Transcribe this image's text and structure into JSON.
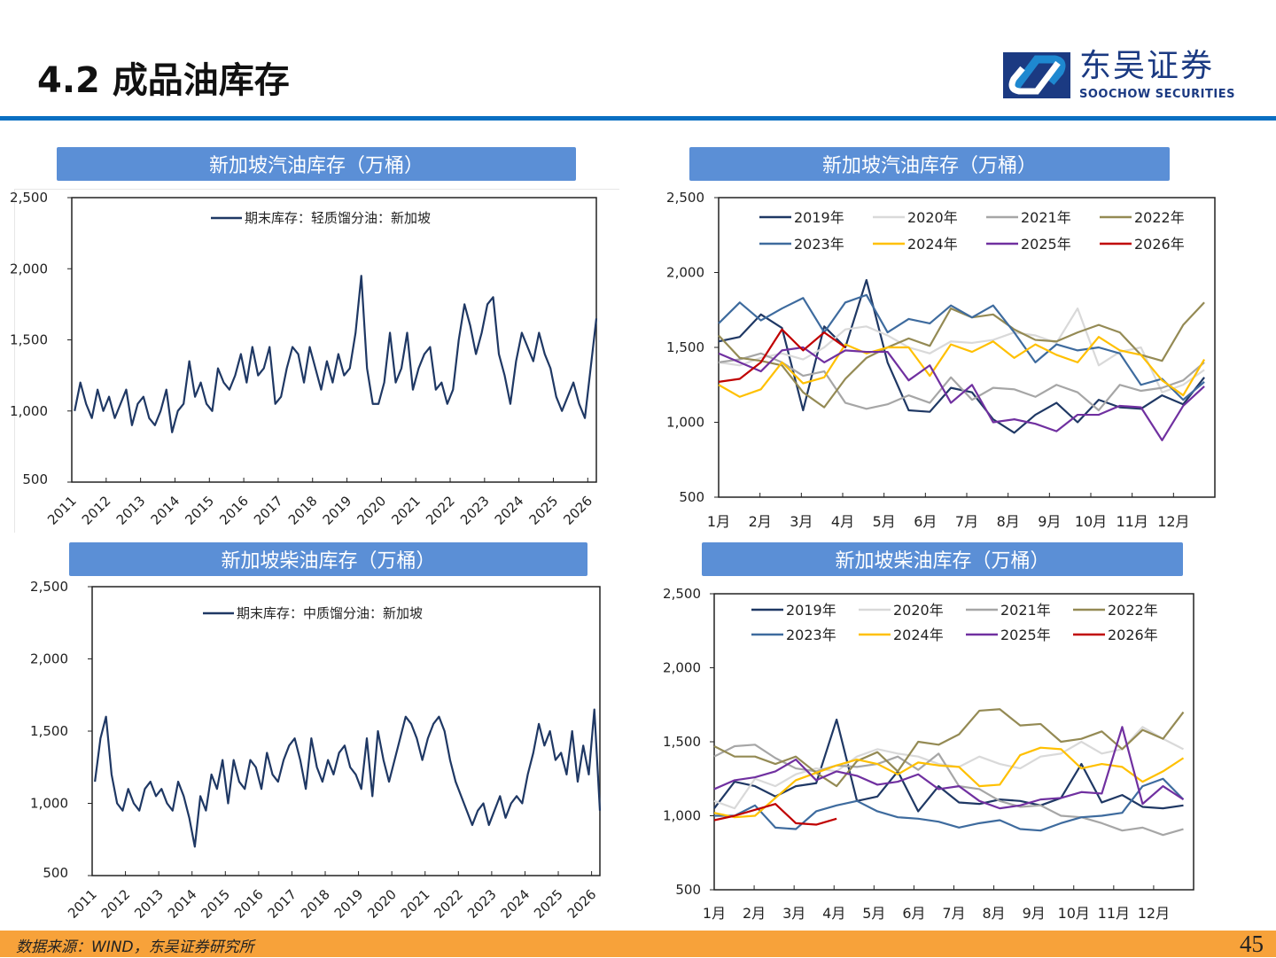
{
  "header": {
    "title": "4.2 成品油库存"
  },
  "logo": {
    "cn": "东吴证券",
    "en": "SOOCHOW SECURITIES",
    "color": "#1b3a82",
    "accent": "#1e88d0"
  },
  "footer": {
    "source": "数据来源：WIND，东吴证券研究所",
    "page": "45"
  },
  "chart_data": [
    {
      "type": "line",
      "title": "新加坡汽油库存（万桶）",
      "legend": "期末库存：轻质馏分油：新加坡",
      "color": "#1f3864",
      "ylim": [
        500,
        2500
      ],
      "y_ticks": [
        "500",
        "1,000",
        "1,500",
        "2,000",
        "2,500"
      ],
      "x_ticks": [
        "2011",
        "2012",
        "2013",
        "2014",
        "2015",
        "2016",
        "2017",
        "2018",
        "2019",
        "2020",
        "2021",
        "2022",
        "2023",
        "2024",
        "2025",
        "2026"
      ],
      "values_by_year": {
        "2011": [
          1000,
          1200,
          1050,
          950,
          1150,
          1000
        ],
        "2012": [
          1100,
          950,
          1050,
          1150,
          900,
          1050
        ],
        "2013": [
          1100,
          950,
          900,
          1000,
          1150,
          850
        ],
        "2014": [
          1000,
          1050,
          1350,
          1100,
          1200,
          1050
        ],
        "2015": [
          1000,
          1300,
          1200,
          1150,
          1250,
          1400
        ],
        "2016": [
          1200,
          1450,
          1250,
          1300,
          1450,
          1050
        ],
        "2017": [
          1100,
          1300,
          1450,
          1400,
          1200,
          1450
        ],
        "2018": [
          1300,
          1150,
          1350,
          1200,
          1400,
          1250
        ],
        "2019": [
          1300,
          1550,
          1950,
          1300,
          1050,
          1050
        ],
        "2020": [
          1200,
          1550,
          1200,
          1300,
          1550,
          1150
        ],
        "2021": [
          1300,
          1400,
          1450,
          1150,
          1200,
          1050
        ],
        "2022": [
          1150,
          1500,
          1750,
          1600,
          1400,
          1550
        ],
        "2023": [
          1750,
          1800,
          1400,
          1250,
          1050,
          1350
        ],
        "2024": [
          1550,
          1450,
          1350,
          1550,
          1400,
          1300
        ],
        "2025": [
          1100,
          1000,
          1100,
          1200,
          1050,
          950
        ],
        "2026": [
          1300,
          1650
        ]
      }
    },
    {
      "type": "line",
      "title": "新加坡汽油库存（万桶）",
      "ylim": [
        500,
        2500
      ],
      "y_ticks": [
        "500",
        "1,000",
        "1,500",
        "2,000",
        "2,500"
      ],
      "x_ticks": [
        "1月",
        "2月",
        "3月",
        "4月",
        "5月",
        "6月",
        "7月",
        "8月",
        "9月",
        "10月",
        "11月",
        "12月"
      ],
      "series": [
        {
          "name": "2019年",
          "color": "#1f3864",
          "values": [
            1540,
            1570,
            1720,
            1630,
            1080,
            1640,
            1500,
            1950,
            1400,
            1080,
            1070,
            1230,
            1200,
            1020,
            930,
            1050,
            1130,
            1000,
            1150,
            1100,
            1090,
            1180,
            1120,
            1300
          ]
        },
        {
          "name": "2020年",
          "color": "#d9d9d9",
          "values": [
            1400,
            1380,
            1430,
            1460,
            1420,
            1500,
            1620,
            1640,
            1580,
            1500,
            1460,
            1540,
            1530,
            1550,
            1600,
            1580,
            1530,
            1760,
            1380,
            1470,
            1500,
            1200,
            1250,
            1350
          ]
        },
        {
          "name": "2021年",
          "color": "#a6a6a6",
          "values": [
            1400,
            1420,
            1460,
            1400,
            1310,
            1340,
            1130,
            1090,
            1120,
            1180,
            1130,
            1300,
            1150,
            1230,
            1220,
            1170,
            1250,
            1200,
            1080,
            1250,
            1210,
            1230,
            1280,
            1400
          ]
        },
        {
          "name": "2022年",
          "color": "#948a54",
          "values": [
            1580,
            1430,
            1410,
            1380,
            1200,
            1100,
            1290,
            1430,
            1500,
            1560,
            1510,
            1760,
            1700,
            1720,
            1620,
            1550,
            1540,
            1600,
            1650,
            1600,
            1450,
            1410,
            1650,
            1800
          ]
        },
        {
          "name": "2023年",
          "color": "#3e6b9e",
          "values": [
            1660,
            1800,
            1680,
            1760,
            1830,
            1600,
            1800,
            1850,
            1600,
            1690,
            1660,
            1780,
            1700,
            1780,
            1600,
            1400,
            1520,
            1480,
            1500,
            1460,
            1250,
            1290,
            1150,
            1270
          ]
        },
        {
          "name": "2024年",
          "color": "#ffc000",
          "values": [
            1250,
            1170,
            1220,
            1400,
            1260,
            1300,
            1520,
            1460,
            1500,
            1500,
            1310,
            1520,
            1470,
            1540,
            1430,
            1520,
            1450,
            1400,
            1570,
            1480,
            1450,
            1280,
            1180,
            1420
          ]
        },
        {
          "name": "2025年",
          "color": "#7030a0",
          "values": [
            1460,
            1400,
            1340,
            1480,
            1500,
            1400,
            1480,
            1470,
            1470,
            1280,
            1380,
            1130,
            1250,
            1000,
            1020,
            990,
            940,
            1050,
            1050,
            1110,
            1100,
            880,
            1110,
            1240
          ]
        },
        {
          "name": "2026年",
          "color": "#c00000",
          "values": [
            1270,
            1290,
            1400,
            1620,
            1480,
            1600,
            1500
          ]
        }
      ]
    },
    {
      "type": "line",
      "title": "新加坡柴油库存（万桶）",
      "legend": "期末库存：中质馏分油：新加坡",
      "color": "#1f3864",
      "ylim": [
        500,
        2500
      ],
      "y_ticks": [
        "500",
        "1,000",
        "1,500",
        "2,000",
        "2,500"
      ],
      "x_ticks": [
        "2011",
        "2012",
        "2013",
        "2014",
        "2015",
        "2016",
        "2017",
        "2018",
        "2019",
        "2020",
        "2021",
        "2022",
        "2023",
        "2024",
        "2025",
        "2026"
      ],
      "values_by_year": {
        "2011": [
          1150,
          1450,
          1600,
          1200,
          1000,
          950
        ],
        "2012": [
          1100,
          1000,
          950,
          1100,
          1150,
          1050
        ],
        "2013": [
          1100,
          1000,
          950,
          1150,
          1050,
          900
        ],
        "2014": [
          700,
          1050,
          950,
          1200,
          1100,
          1300
        ],
        "2015": [
          1000,
          1300,
          1150,
          1100,
          1300,
          1250
        ],
        "2016": [
          1100,
          1350,
          1200,
          1150,
          1300,
          1400
        ],
        "2017": [
          1450,
          1300,
          1100,
          1450,
          1250,
          1150
        ],
        "2018": [
          1300,
          1200,
          1350,
          1400,
          1250,
          1200
        ],
        "2019": [
          1100,
          1450,
          1050,
          1500,
          1300,
          1150
        ],
        "2020": [
          1300,
          1450,
          1600,
          1550,
          1450,
          1300
        ],
        "2021": [
          1450,
          1550,
          1600,
          1500,
          1300,
          1150
        ],
        "2022": [
          1050,
          950,
          850,
          950,
          1000,
          850
        ],
        "2023": [
          950,
          1050,
          900,
          1000,
          1050,
          1000
        ],
        "2024": [
          1200,
          1350,
          1550,
          1400,
          1500,
          1300
        ],
        "2025": [
          1350,
          1200,
          1500,
          1150,
          1400,
          1200
        ],
        "2026": [
          1650,
          950
        ]
      }
    },
    {
      "type": "line",
      "title": "新加坡柴油库存（万桶）",
      "ylim": [
        500,
        2500
      ],
      "y_ticks": [
        "500",
        "1,000",
        "1,500",
        "2,000",
        "2,500"
      ],
      "x_ticks": [
        "1月",
        "2月",
        "3月",
        "4月",
        "5月",
        "6月",
        "7月",
        "8月",
        "9月",
        "10月",
        "11月",
        "12月"
      ],
      "series": [
        {
          "name": "2019年",
          "color": "#1f3864",
          "values": [
            1050,
            1230,
            1200,
            1130,
            1200,
            1220,
            1650,
            1100,
            1130,
            1300,
            1030,
            1200,
            1090,
            1080,
            1110,
            1100,
            1070,
            1120,
            1350,
            1090,
            1140,
            1060,
            1050,
            1070
          ]
        },
        {
          "name": "2020年",
          "color": "#d9d9d9",
          "values": [
            1100,
            1050,
            1250,
            1200,
            1280,
            1320,
            1300,
            1400,
            1450,
            1420,
            1400,
            1350,
            1330,
            1400,
            1350,
            1320,
            1400,
            1420,
            1500,
            1420,
            1450,
            1600,
            1520,
            1450
          ]
        },
        {
          "name": "2021年",
          "color": "#a6a6a6",
          "values": [
            1400,
            1470,
            1480,
            1390,
            1320,
            1300,
            1340,
            1330,
            1350,
            1400,
            1310,
            1420,
            1200,
            1180,
            1100,
            1060,
            1070,
            1000,
            990,
            950,
            900,
            920,
            870,
            910
          ]
        },
        {
          "name": "2022年",
          "color": "#948a54",
          "values": [
            1470,
            1400,
            1400,
            1350,
            1400,
            1290,
            1200,
            1370,
            1430,
            1300,
            1500,
            1480,
            1550,
            1710,
            1720,
            1610,
            1620,
            1500,
            1520,
            1570,
            1450,
            1580,
            1520,
            1700
          ]
        },
        {
          "name": "2023年",
          "color": "#3e6b9e",
          "values": [
            1000,
            1000,
            1070,
            920,
            910,
            1030,
            1070,
            1100,
            1030,
            990,
            980,
            960,
            920,
            950,
            970,
            910,
            900,
            950,
            990,
            1000,
            1020,
            1200,
            1250,
            1110
          ]
        },
        {
          "name": "2024年",
          "color": "#ffc000",
          "values": [
            1020,
            990,
            1000,
            1120,
            1240,
            1290,
            1340,
            1380,
            1350,
            1280,
            1360,
            1340,
            1330,
            1200,
            1210,
            1410,
            1460,
            1450,
            1320,
            1350,
            1330,
            1230,
            1300,
            1390
          ]
        },
        {
          "name": "2025年",
          "color": "#7030a0",
          "values": [
            1180,
            1240,
            1260,
            1300,
            1380,
            1240,
            1300,
            1270,
            1210,
            1230,
            1280,
            1180,
            1200,
            1100,
            1050,
            1070,
            1110,
            1120,
            1160,
            1150,
            1600,
            1080,
            1200,
            1110
          ]
        },
        {
          "name": "2026年",
          "color": "#c00000",
          "values": [
            970,
            1000,
            1040,
            1080,
            950,
            940,
            980
          ]
        }
      ]
    }
  ]
}
